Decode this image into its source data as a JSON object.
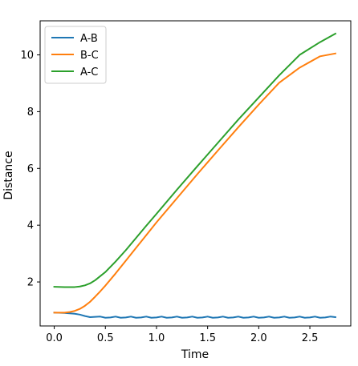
{
  "chart_data": {
    "type": "line",
    "title": "",
    "xlabel": "Time",
    "ylabel": "Distance",
    "xlim": [
      -0.138,
      2.9
    ],
    "ylim": [
      0.45,
      11.2
    ],
    "xticks": [
      0.0,
      0.5,
      1.0,
      1.5,
      2.0,
      2.5
    ],
    "xtick_labels": [
      "0.0",
      "0.5",
      "1.0",
      "1.5",
      "2.0",
      "2.5"
    ],
    "yticks": [
      2,
      4,
      6,
      8,
      10
    ],
    "ytick_labels": [
      "2",
      "4",
      "6",
      "8",
      "10"
    ],
    "grid": false,
    "legend_position": "upper-left",
    "series": [
      {
        "name": "A-B",
        "color": "#1f77b4",
        "x": [
          0.0,
          0.1,
          0.2,
          0.25,
          0.3,
          0.35,
          0.4,
          0.45,
          0.5,
          0.55,
          0.6,
          0.65,
          0.7,
          0.75,
          0.8,
          0.85,
          0.9,
          0.95,
          1.0,
          1.05,
          1.1,
          1.15,
          1.2,
          1.25,
          1.3,
          1.35,
          1.4,
          1.45,
          1.5,
          1.55,
          1.6,
          1.65,
          1.7,
          1.75,
          1.8,
          1.85,
          1.9,
          1.95,
          2.0,
          2.05,
          2.1,
          2.15,
          2.2,
          2.25,
          2.3,
          2.35,
          2.4,
          2.45,
          2.5,
          2.55,
          2.6,
          2.65,
          2.7,
          2.75
        ],
        "y": [
          0.92,
          0.91,
          0.88,
          0.85,
          0.8,
          0.76,
          0.77,
          0.78,
          0.74,
          0.75,
          0.78,
          0.74,
          0.75,
          0.78,
          0.74,
          0.75,
          0.78,
          0.74,
          0.75,
          0.78,
          0.74,
          0.75,
          0.78,
          0.74,
          0.75,
          0.78,
          0.74,
          0.75,
          0.78,
          0.74,
          0.75,
          0.78,
          0.74,
          0.75,
          0.78,
          0.74,
          0.75,
          0.78,
          0.74,
          0.75,
          0.78,
          0.74,
          0.75,
          0.78,
          0.74,
          0.75,
          0.78,
          0.74,
          0.75,
          0.78,
          0.74,
          0.75,
          0.78,
          0.76
        ]
      },
      {
        "name": "B-C",
        "color": "#ff7f0e",
        "x": [
          0.0,
          0.1,
          0.15,
          0.2,
          0.25,
          0.3,
          0.35,
          0.4,
          0.45,
          0.5,
          0.6,
          0.7,
          0.8,
          0.9,
          1.0,
          1.2,
          1.4,
          1.6,
          1.8,
          2.0,
          2.2,
          2.4,
          2.6,
          2.75
        ],
        "y": [
          0.92,
          0.92,
          0.94,
          0.98,
          1.05,
          1.16,
          1.3,
          1.48,
          1.67,
          1.87,
          2.3,
          2.75,
          3.2,
          3.65,
          4.1,
          4.95,
          5.8,
          6.63,
          7.45,
          8.25,
          9.02,
          9.55,
          9.95,
          10.05
        ]
      },
      {
        "name": "A-C",
        "color": "#2ca02c",
        "x": [
          0.0,
          0.1,
          0.15,
          0.2,
          0.25,
          0.3,
          0.35,
          0.4,
          0.5,
          0.6,
          0.7,
          0.8,
          0.9,
          1.0,
          1.2,
          1.4,
          1.6,
          1.8,
          2.0,
          2.2,
          2.4,
          2.6,
          2.75
        ],
        "y": [
          1.83,
          1.82,
          1.82,
          1.82,
          1.84,
          1.88,
          1.95,
          2.06,
          2.35,
          2.72,
          3.12,
          3.55,
          3.98,
          4.4,
          5.25,
          6.08,
          6.9,
          7.72,
          8.5,
          9.28,
          10.0,
          10.45,
          10.75
        ]
      }
    ]
  }
}
